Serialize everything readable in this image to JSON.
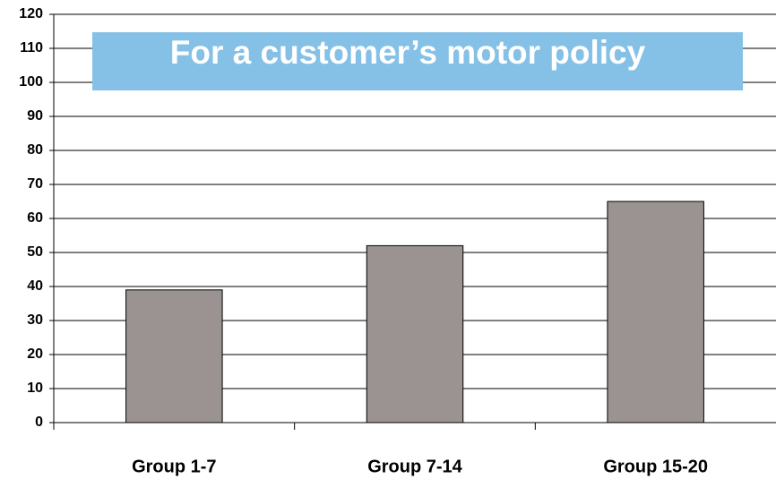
{
  "chart_data": {
    "type": "bar",
    "title": "For a customer’s motor policy",
    "categories": [
      "Group 1-7",
      "Group 7-14",
      "Group 15-20"
    ],
    "values": [
      39,
      52,
      65
    ],
    "color": "#9a9391",
    "ylim": [
      0,
      120
    ],
    "yticks": [
      0,
      10,
      20,
      30,
      40,
      50,
      60,
      70,
      80,
      90,
      100,
      110,
      120
    ],
    "grid": true
  }
}
